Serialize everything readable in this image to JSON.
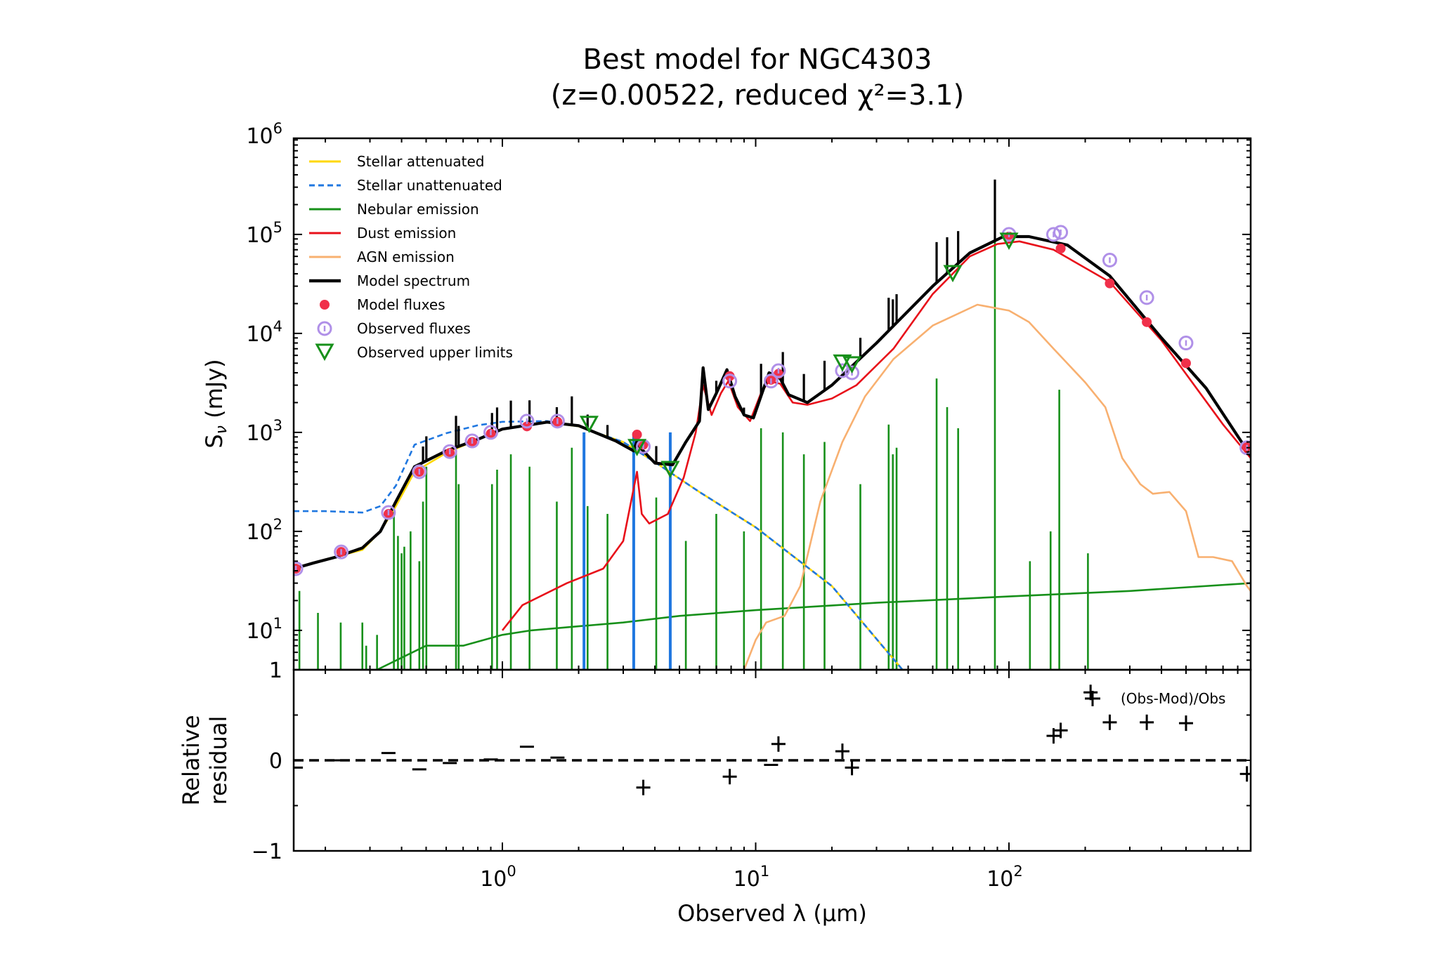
{
  "chart_data": {
    "type": "line",
    "title": "Best model for NGC4303",
    "subtitle": "(z=0.00522, reduced χ²=3.1)",
    "xlabel": "Observed λ (μm)",
    "ylabel": "Sν (mJy)",
    "residual_ylabel": [
      "Relative",
      "residual"
    ],
    "residual_legend": "(Obs-Mod)/Obs",
    "x_scale": "log",
    "y_scale": "log",
    "xlim": [
      0.15,
      900
    ],
    "ylim": [
      4,
      1000000
    ],
    "residual_ylim": [
      -1,
      1
    ],
    "x_ticks": [
      {
        "value": 1,
        "base": "10",
        "exp": "0"
      },
      {
        "value": 10,
        "base": "10",
        "exp": "1"
      },
      {
        "value": 100,
        "base": "10",
        "exp": "2"
      }
    ],
    "y_ticks": [
      {
        "value": 1000000,
        "base": "10",
        "exp": "6"
      },
      {
        "value": 100000,
        "base": "10",
        "exp": "5"
      },
      {
        "value": 10000,
        "base": "10",
        "exp": "4"
      },
      {
        "value": 1000,
        "base": "10",
        "exp": "3"
      },
      {
        "value": 100,
        "base": "10",
        "exp": "2"
      },
      {
        "value": 10,
        "base": "10",
        "exp": "1"
      }
    ],
    "y_bottom_label": "1",
    "residual_ticks": [
      {
        "value": 0,
        "label": "0"
      },
      {
        "value": -1,
        "label": "−1"
      }
    ],
    "legend": [
      {
        "label": "Stellar attenuated",
        "color": "#ffd700",
        "style": "line"
      },
      {
        "label": "Stellar unattenuated",
        "color": "#1f77e0",
        "style": "dashed"
      },
      {
        "label": "Nebular emission",
        "color": "#17901a",
        "style": "line"
      },
      {
        "label": "Dust emission",
        "color": "#e8101a",
        "style": "line"
      },
      {
        "label": "AGN emission",
        "color": "#f8b070",
        "style": "line"
      },
      {
        "label": "Model spectrum",
        "color": "#000000",
        "style": "thick"
      },
      {
        "label": "Model fluxes",
        "color": "#f0304a",
        "style": "dot"
      },
      {
        "label": "Observed fluxes",
        "color": "#b090e8",
        "style": "circle"
      },
      {
        "label": "Observed upper limits",
        "color": "#17901a",
        "style": "triangle"
      }
    ],
    "series": {
      "stellar_unattenuated": [
        [
          0.15,
          160
        ],
        [
          0.2,
          160
        ],
        [
          0.28,
          155
        ],
        [
          0.33,
          180
        ],
        [
          0.38,
          290
        ],
        [
          0.45,
          750
        ],
        [
          0.6,
          980
        ],
        [
          0.8,
          1180
        ],
        [
          1.0,
          1280
        ],
        [
          1.5,
          1300
        ],
        [
          2.0,
          1150
        ],
        [
          3.0,
          800
        ],
        [
          4.0,
          500
        ],
        [
          6.0,
          250
        ],
        [
          10,
          110
        ],
        [
          20,
          28
        ],
        [
          38,
          4
        ]
      ],
      "stellar_attenuated": [
        [
          0.15,
          42
        ],
        [
          0.2,
          52
        ],
        [
          0.28,
          65
        ],
        [
          0.33,
          100
        ],
        [
          0.38,
          180
        ],
        [
          0.45,
          400
        ],
        [
          0.6,
          620
        ],
        [
          0.8,
          850
        ],
        [
          1.0,
          1080
        ],
        [
          1.5,
          1270
        ],
        [
          2.0,
          1150
        ],
        [
          3.0,
          800
        ],
        [
          4.0,
          500
        ],
        [
          6.0,
          250
        ],
        [
          10,
          110
        ],
        [
          20,
          28
        ],
        [
          38,
          4
        ]
      ],
      "dust_emission": [
        [
          1.0,
          10
        ],
        [
          1.2,
          18
        ],
        [
          1.8,
          30
        ],
        [
          2.5,
          42
        ],
        [
          3.0,
          80
        ],
        [
          3.4,
          400
        ],
        [
          3.55,
          150
        ],
        [
          3.8,
          120
        ],
        [
          4.5,
          150
        ],
        [
          5.2,
          350
        ],
        [
          5.8,
          1000
        ],
        [
          6.2,
          3000
        ],
        [
          6.7,
          1500
        ],
        [
          7.3,
          2500
        ],
        [
          7.8,
          3300
        ],
        [
          8.5,
          1800
        ],
        [
          9.5,
          1300
        ],
        [
          10.5,
          2500
        ],
        [
          11.3,
          3300
        ],
        [
          12.5,
          3100
        ],
        [
          14,
          2000
        ],
        [
          16,
          1900
        ],
        [
          20,
          2200
        ],
        [
          25,
          3000
        ],
        [
          35,
          7000
        ],
        [
          50,
          25000
        ],
        [
          70,
          60000
        ],
        [
          90,
          80000
        ],
        [
          110,
          85000
        ],
        [
          150,
          70000
        ],
        [
          250,
          33000
        ],
        [
          400,
          8500
        ],
        [
          700,
          1200
        ],
        [
          900,
          550
        ]
      ],
      "agn_emission": [
        [
          9,
          4
        ],
        [
          10,
          8
        ],
        [
          11,
          12
        ],
        [
          13,
          14
        ],
        [
          15,
          28
        ],
        [
          18,
          200
        ],
        [
          22,
          800
        ],
        [
          27,
          2300
        ],
        [
          35,
          5500
        ],
        [
          50,
          12000
        ],
        [
          75,
          19500
        ],
        [
          100,
          17000
        ],
        [
          120,
          13000
        ],
        [
          150,
          7000
        ],
        [
          200,
          3200
        ],
        [
          240,
          1800
        ],
        [
          280,
          550
        ],
        [
          330,
          300
        ],
        [
          370,
          240
        ],
        [
          430,
          250
        ],
        [
          500,
          160
        ],
        [
          560,
          55
        ],
        [
          640,
          55
        ],
        [
          760,
          50
        ],
        [
          870,
          28
        ],
        [
          900,
          25
        ]
      ],
      "nebular_continuum": [
        [
          0.32,
          4
        ],
        [
          0.5,
          7
        ],
        [
          0.7,
          7
        ],
        [
          1.0,
          9
        ],
        [
          1.3,
          10
        ],
        [
          2.0,
          11
        ],
        [
          3.0,
          12
        ],
        [
          5.0,
          14
        ],
        [
          10,
          16
        ],
        [
          30,
          19
        ],
        [
          100,
          22
        ],
        [
          300,
          25
        ],
        [
          900,
          30
        ]
      ],
      "model_spectrum": [
        [
          0.15,
          42
        ],
        [
          0.18,
          48
        ],
        [
          0.22,
          55
        ],
        [
          0.28,
          68
        ],
        [
          0.33,
          100
        ],
        [
          0.38,
          200
        ],
        [
          0.45,
          450
        ],
        [
          0.6,
          650
        ],
        [
          0.8,
          850
        ],
        [
          1.0,
          1080
        ],
        [
          1.5,
          1270
        ],
        [
          2.0,
          1170
        ],
        [
          2.8,
          820
        ],
        [
          3.3,
          650
        ],
        [
          3.4,
          820
        ],
        [
          3.5,
          700
        ],
        [
          4.0,
          490
        ],
        [
          4.7,
          470
        ],
        [
          5.3,
          800
        ],
        [
          6.0,
          1300
        ],
        [
          6.2,
          4500
        ],
        [
          6.5,
          1700
        ],
        [
          7.0,
          2500
        ],
        [
          7.7,
          4300
        ],
        [
          8.3,
          2300
        ],
        [
          9.0,
          1500
        ],
        [
          9.8,
          1400
        ],
        [
          11.3,
          4000
        ],
        [
          12.5,
          3500
        ],
        [
          13.5,
          2400
        ],
        [
          16,
          2000
        ],
        [
          20,
          3000
        ],
        [
          30,
          8000
        ],
        [
          50,
          30000
        ],
        [
          70,
          65000
        ],
        [
          95,
          95000
        ],
        [
          120,
          95000
        ],
        [
          170,
          78000
        ],
        [
          250,
          38000
        ],
        [
          400,
          9000
        ],
        [
          600,
          2800
        ],
        [
          900,
          580
        ]
      ],
      "nebular_lines": [
        [
          0.158,
          25
        ],
        [
          0.187,
          15
        ],
        [
          0.23,
          12
        ],
        [
          0.28,
          12
        ],
        [
          0.29,
          7
        ],
        [
          0.32,
          9
        ],
        [
          0.373,
          160
        ],
        [
          0.387,
          90
        ],
        [
          0.4,
          60
        ],
        [
          0.41,
          70
        ],
        [
          0.434,
          100
        ],
        [
          0.47,
          50
        ],
        [
          0.486,
          200
        ],
        [
          0.501,
          450
        ],
        [
          0.656,
          1000
        ],
        [
          0.672,
          300
        ],
        [
          0.91,
          300
        ],
        [
          0.953,
          420
        ],
        [
          1.08,
          600
        ],
        [
          1.28,
          450
        ],
        [
          1.64,
          200
        ],
        [
          1.88,
          700
        ],
        [
          2.17,
          180
        ],
        [
          2.6,
          150
        ],
        [
          4.05,
          220
        ],
        [
          5.3,
          80
        ],
        [
          6.99,
          150
        ],
        [
          8.99,
          100
        ],
        [
          10.5,
          1100
        ],
        [
          12.8,
          1000
        ],
        [
          15.5,
          600
        ],
        [
          18.7,
          800
        ],
        [
          25.9,
          300
        ],
        [
          33.5,
          1200
        ],
        [
          34.8,
          600
        ],
        [
          36,
          700
        ],
        [
          51.8,
          3500
        ],
        [
          57,
          1800
        ],
        [
          63,
          1100
        ],
        [
          88,
          200000
        ],
        [
          121,
          50
        ],
        [
          146,
          100
        ],
        [
          158,
          2700
        ],
        [
          205,
          60
        ]
      ],
      "agn_bars": [
        [
          2.1,
          1000
        ],
        [
          3.3,
          1000
        ],
        [
          4.6,
          1000
        ]
      ],
      "model_fluxes": [
        [
          0.153,
          42
        ],
        [
          0.231,
          62
        ],
        [
          0.355,
          150
        ],
        [
          0.47,
          400
        ],
        [
          0.62,
          620
        ],
        [
          0.76,
          800
        ],
        [
          0.9,
          970
        ],
        [
          1.25,
          1150
        ],
        [
          1.65,
          1280
        ],
        [
          3.4,
          950
        ],
        [
          3.6,
          750
        ],
        [
          7.9,
          3700
        ],
        [
          11.5,
          3400
        ],
        [
          12.3,
          3900
        ],
        [
          100,
          95000
        ],
        [
          160,
          72000
        ],
        [
          250,
          32000
        ],
        [
          350,
          13000
        ],
        [
          500,
          5000
        ],
        [
          870,
          720
        ]
      ],
      "observed_fluxes": [
        [
          0.153,
          42
        ],
        [
          0.231,
          62
        ],
        [
          0.355,
          155
        ],
        [
          0.47,
          400
        ],
        [
          0.62,
          640
        ],
        [
          0.76,
          820
        ],
        [
          0.9,
          1000
        ],
        [
          1.25,
          1300
        ],
        [
          1.65,
          1300
        ],
        [
          3.6,
          720
        ],
        [
          7.9,
          3300
        ],
        [
          11.5,
          3300
        ],
        [
          12.3,
          4200
        ],
        [
          22,
          4200
        ],
        [
          24,
          4000
        ],
        [
          100,
          100000
        ],
        [
          150,
          100000
        ],
        [
          160,
          105000
        ],
        [
          250,
          55000
        ],
        [
          350,
          23000
        ],
        [
          500,
          8000
        ],
        [
          870,
          700
        ]
      ],
      "upper_limits": [
        [
          2.2,
          1200
        ],
        [
          3.4,
          700
        ],
        [
          4.6,
          420
        ],
        [
          22,
          5000
        ],
        [
          24,
          4800
        ],
        [
          60,
          40000
        ],
        [
          100,
          85000
        ]
      ],
      "residuals": [
        [
          0.153,
          -0.08
        ],
        [
          0.231,
          0.0
        ],
        [
          0.355,
          0.08
        ],
        [
          0.47,
          -0.1
        ],
        [
          0.62,
          -0.03
        ],
        [
          0.9,
          0.01
        ],
        [
          1.25,
          0.15
        ],
        [
          1.65,
          0.03
        ],
        [
          3.6,
          -0.3
        ],
        [
          7.9,
          -0.18
        ],
        [
          11.5,
          -0.05
        ],
        [
          12.3,
          0.18
        ],
        [
          22,
          0.1
        ],
        [
          24,
          -0.08
        ],
        [
          100,
          0.0
        ],
        [
          150,
          0.27
        ],
        [
          160,
          0.33
        ],
        [
          210,
          0.75
        ],
        [
          250,
          0.42
        ],
        [
          350,
          0.42
        ],
        [
          500,
          0.41
        ],
        [
          870,
          -0.15
        ]
      ]
    }
  }
}
